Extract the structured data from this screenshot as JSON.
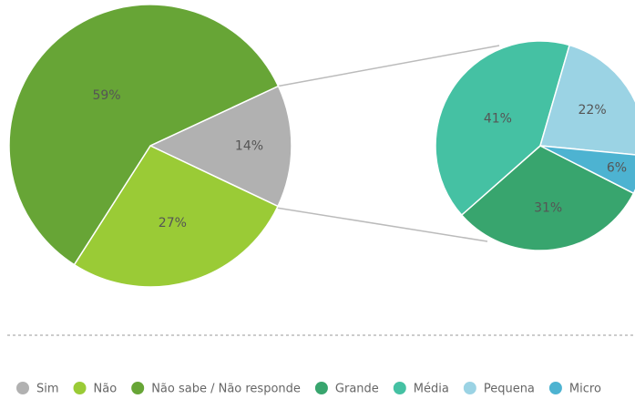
{
  "chart_data": [
    {
      "type": "pie",
      "categories": [
        "Sim",
        "Não",
        "Não sabe / Não responde"
      ],
      "values": [
        14,
        27,
        59
      ],
      "value_labels": [
        "14%",
        "27%",
        "59%"
      ],
      "colors": [
        "#b1b1b1",
        "#9acb36",
        "#67a536"
      ]
    },
    {
      "type": "pie",
      "categories": [
        "Grande",
        "Média",
        "Pequena",
        "Micro"
      ],
      "values": [
        31,
        41,
        22,
        6
      ],
      "value_labels": [
        "31%",
        "41%",
        "22%",
        "6%"
      ],
      "colors": [
        "#38a56e",
        "#45c1a3",
        "#9bd3e4",
        "#4db3d1"
      ]
    }
  ]
}
